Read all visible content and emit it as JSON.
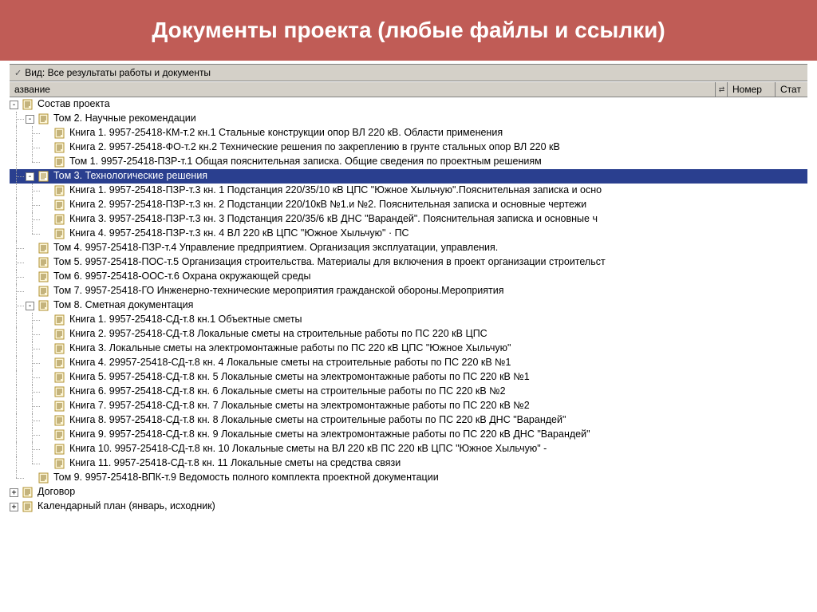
{
  "banner": {
    "title": "Документы проекта (любые файлы и ссылки)"
  },
  "filter": {
    "label": "Вид: Все результаты работы и документы",
    "check_glyph": "✓"
  },
  "columns": {
    "name": "азвание",
    "number": "Номер",
    "status": "Стат"
  },
  "colors": {
    "banner_bg": "#c05c56",
    "selection_bg": "#2a3f8f",
    "chrome_bg": "#d4d0c8"
  },
  "tree": {
    "root": {
      "label": "Состав проекта",
      "children": [
        {
          "label": "Том 2. Научные рекомендации",
          "children": [
            {
              "label": "Книга 1. 9957-25418-КМ-т.2 кн.1 Стальные конструкции опор ВЛ 220 кВ. Области применения"
            },
            {
              "label": "Книга 2. 9957-25418-ФО-т.2 кн.2 Технические решения по закреплению в грунте стальных опор ВЛ 220 кВ"
            },
            {
              "label": "Том 1. 9957-25418-ПЗР-т.1  Общая пояснительная записка. Общие сведения по проектным решениям"
            }
          ]
        },
        {
          "label": "Том 3. Технологические решения",
          "selected": true,
          "children": [
            {
              "label": "Книга 1. 9957-25418-ПЗР-т.3 кн. 1 Подстанция 220/35/10 кВ ЦПС \"Южное Хыльчую\".Пояснительная записка и осно"
            },
            {
              "label": "Книга 2. 9957-25418-ПЗР-т.3 кн. 2 Подстанции 220/10кВ №1.и №2. Пояснительная записка и основные чертежи"
            },
            {
              "label": "Книга 3. 9957-25418-ПЗР-т.3 кн. 3 Подстанция 220/35/6 кВ ДНС \"Варандей\". Пояснительная записка и основные ч"
            },
            {
              "label": "Книга 4. 9957-25418-ПЗР-т.3 кн. 4 ВЛ 220 кВ ЦПС \"Южное Хыльчую\" · ПС"
            }
          ]
        },
        {
          "label": "Том 4. 9957-25418-ПЗР-т.4 Управление предприятием. Организация эксплуатации,  управления."
        },
        {
          "label": "Том 5. 9957-25418-ПОС-т.5 Организация строительства. Материалы для включения в проект организации строительст"
        },
        {
          "label": "Том 6. 9957-25418-ООС-т.6 Охрана окружающей среды"
        },
        {
          "label": "Том 7. 9957-25418-ГО Инженерно-технические мероприятия гражданской обороны.Мероприятия"
        },
        {
          "label": "Том 8. Сметная документация",
          "children": [
            {
              "label": "Книга 1. 9957-25418-СД-т.8 кн.1 Объектные сметы"
            },
            {
              "label": "Книга 2. 9957-25418-СД-т.8 Локальные сметы на строительные работы по ПС 220 кВ ЦПС"
            },
            {
              "label": "Книга 3. Локальные сметы на электромонтажные работы по ПС 220 кВ ЦПС \"Южное Хыльчую\""
            },
            {
              "label": "Книга 4. 29957-25418-СД-т.8 кн. 4 Локальные сметы на строительные работы по ПС 220 кВ №1"
            },
            {
              "label": "Книга 5. 9957-25418-СД-т.8 кн. 5 Локальные сметы на электромонтажные работы по ПС 220 кВ №1"
            },
            {
              "label": "Книга 6. 9957-25418-СД-т.8 кн. 6 Локальные сметы на строительные работы по ПС 220 кВ №2"
            },
            {
              "label": "Книга 7. 9957-25418-СД-т.8 кн. 7 Локальные сметы на электромонтажные работы по ПС 220 кВ №2"
            },
            {
              "label": "Книга 8. 9957-25418-СД-т.8 кн. 8 Локальные сметы на строительные работы по ПС 220 кВ ДНС \"Варандей\""
            },
            {
              "label": "Книга 9. 9957-25418-СД-т.8 кн. 9 Локальные сметы на электромонтажные работы по ПС 220 кВ ДНС \"Варандей\""
            },
            {
              "label": "Книга 10. 9957-25418-СД-т.8 кн. 10 Локальные сметы на ВЛ 220 кВ ПС 220 кВ ЦПС \"Южное Хыльчую\" -"
            },
            {
              "label": "Книга 11. 9957-25418-СД-т.8 кн. 11 Локальные сметы на средства связи"
            }
          ]
        },
        {
          "label": "Том 9. 9957-25418-ВПК-т.9 Ведомость полного комплекта проектной документации"
        }
      ]
    },
    "siblings": [
      {
        "label": "Договор"
      },
      {
        "label": "Календарный план (январь, исходник)"
      }
    ]
  }
}
